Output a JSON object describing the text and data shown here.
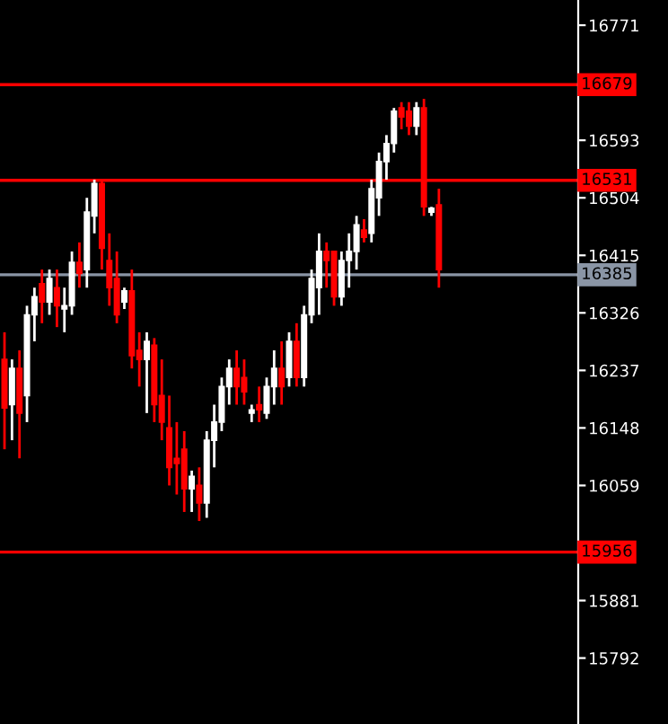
{
  "chart_data": {
    "type": "candlestick",
    "categories": [
      null,
      null,
      null,
      null,
      null,
      null,
      null,
      null,
      null,
      null,
      null,
      null,
      null,
      null,
      null,
      null,
      null,
      null,
      null,
      null,
      null,
      null,
      null,
      null,
      null,
      null,
      null,
      null,
      null,
      null,
      null,
      null,
      null,
      null,
      null,
      null,
      null,
      null,
      null,
      null,
      null,
      null,
      null,
      null,
      null,
      null,
      null,
      null,
      null,
      null,
      null,
      null,
      null,
      null,
      null,
      null,
      null,
      null,
      null,
      null,
      null,
      null,
      null,
      null,
      null,
      null,
      null,
      null,
      null,
      null,
      null,
      null,
      null,
      null,
      null,
      null,
      null
    ],
    "ohlc": [
      [
        16254,
        16296,
        16115,
        16179
      ],
      [
        16184,
        16254,
        16129,
        16240
      ],
      [
        16240,
        16268,
        16101,
        16171
      ],
      [
        16198,
        16337,
        16157,
        16323
      ],
      [
        16323,
        16365,
        16282,
        16351
      ],
      [
        16371,
        16393,
        16310,
        16343
      ],
      [
        16343,
        16393,
        16323,
        16379
      ],
      [
        16365,
        16393,
        16304,
        16337
      ],
      [
        16332,
        16365,
        16296,
        16337
      ],
      [
        16337,
        16421,
        16323,
        16404
      ],
      [
        16404,
        16435,
        16365,
        16387
      ],
      [
        16393,
        16504,
        16365,
        16482
      ],
      [
        16476,
        16532,
        16449,
        16526
      ],
      [
        16526,
        16532,
        16393,
        16426
      ],
      [
        16407,
        16449,
        16337,
        16365
      ],
      [
        16379,
        16421,
        16310,
        16323
      ],
      [
        16343,
        16365,
        16332,
        16360
      ],
      [
        16360,
        16393,
        16240,
        16260
      ],
      [
        16268,
        16296,
        16212,
        16254
      ],
      [
        16254,
        16296,
        16171,
        16282
      ],
      [
        16276,
        16287,
        16157,
        16184
      ],
      [
        16198,
        16254,
        16129,
        16157
      ],
      [
        16148,
        16198,
        16059,
        16087
      ],
      [
        16101,
        16157,
        16045,
        16093
      ],
      [
        16115,
        16143,
        16018,
        16054
      ],
      [
        16054,
        16082,
        16018,
        16073
      ],
      [
        16059,
        16087,
        16004,
        16032
      ],
      [
        16032,
        16143,
        16009,
        16129
      ],
      [
        16129,
        16184,
        16087,
        16157
      ],
      [
        16157,
        16226,
        16143,
        16212
      ],
      [
        16212,
        16254,
        16184,
        16240
      ],
      [
        16240,
        16268,
        16184,
        16212
      ],
      [
        16226,
        16254,
        16184,
        16204
      ],
      [
        16171,
        16184,
        16157,
        16176
      ],
      [
        16184,
        16212,
        16157,
        16176
      ],
      [
        16171,
        16226,
        16162,
        16212
      ],
      [
        16212,
        16268,
        16184,
        16240
      ],
      [
        16240,
        16282,
        16184,
        16212
      ],
      [
        16226,
        16296,
        16212,
        16282
      ],
      [
        16282,
        16310,
        16212,
        16226
      ],
      [
        16226,
        16337,
        16212,
        16323
      ],
      [
        16323,
        16393,
        16310,
        16379
      ],
      [
        16365,
        16449,
        16323,
        16421
      ],
      [
        16421,
        16435,
        16365,
        16407
      ],
      [
        16421,
        16421,
        16337,
        16351
      ],
      [
        16351,
        16421,
        16337,
        16407
      ],
      [
        16407,
        16449,
        16365,
        16421
      ],
      [
        16421,
        16476,
        16393,
        16462
      ],
      [
        16454,
        16471,
        16435,
        16443
      ],
      [
        16449,
        16532,
        16435,
        16518
      ],
      [
        16504,
        16574,
        16476,
        16560
      ],
      [
        16560,
        16601,
        16532,
        16588
      ],
      [
        16588,
        16643,
        16574,
        16638
      ],
      [
        16643,
        16652,
        16610,
        16629
      ],
      [
        16638,
        16652,
        16601,
        16615
      ],
      [
        16615,
        16652,
        16601,
        16643
      ],
      [
        16643,
        16657,
        16476,
        16490
      ],
      [
        16482,
        16490,
        16476,
        16488
      ],
      [
        16493,
        16518,
        16365,
        16393
      ],
      null,
      null,
      null,
      null,
      null,
      null,
      null,
      null,
      null,
      null,
      null,
      null,
      null,
      null,
      null,
      null,
      null,
      null
    ],
    "colors": [
      "#ff0000",
      "#ffffff",
      "#ff0000",
      "#ffffff",
      "#ffffff",
      "#ff0000",
      "#ffffff",
      "#ff0000",
      "#ffffff",
      "#ffffff",
      "#ff0000",
      "#ffffff",
      "#ffffff",
      "#ff0000",
      "#ff0000",
      "#ff0000",
      "#ffffff",
      "#ff0000",
      "#ff0000",
      "#ffffff",
      "#ff0000",
      "#ff0000",
      "#ff0000",
      "#ff0000",
      "#ff0000",
      "#ffffff",
      "#ff0000",
      "#ffffff",
      "#ffffff",
      "#ffffff",
      "#ffffff",
      "#ff0000",
      "#ff0000",
      "#ffffff",
      "#ff0000",
      "#ffffff",
      "#ffffff",
      "#ff0000",
      "#ffffff",
      "#ff0000",
      "#ffffff",
      "#ffffff",
      "#ffffff",
      "#ff0000",
      "#ff0000",
      "#ffffff",
      "#ffffff",
      "#ffffff",
      "#ff0000",
      "#ffffff",
      "#ffffff",
      "#ffffff",
      "#ffffff",
      "#ff0000",
      "#ff0000",
      "#ffffff",
      "#ff0000",
      "#ffffff",
      "#ff0000",
      null,
      null,
      null,
      null,
      null,
      null,
      null,
      null,
      null,
      null,
      null,
      null,
      null,
      null,
      null,
      null,
      null,
      null
    ],
    "ylim": [
      15690,
      16810
    ],
    "yticks": [
      16771,
      16593,
      16504,
      16415,
      16326,
      16237,
      16148,
      16059,
      {
        "value": 15970,
        "label": null
      },
      15881,
      15792
    ],
    "ref_lines": [
      {
        "axis": "y",
        "value": 16679,
        "label": "16679",
        "color": "#ff0000"
      },
      {
        "axis": "y",
        "value": 16531,
        "label": "16531",
        "color": "#ff0000"
      },
      {
        "axis": "y",
        "value": 16385,
        "label": "16385",
        "color": "#8a95a5"
      },
      {
        "axis": "y",
        "value": 15956,
        "label": "15956",
        "color": "#ff0000"
      }
    ],
    "grid": false
  }
}
